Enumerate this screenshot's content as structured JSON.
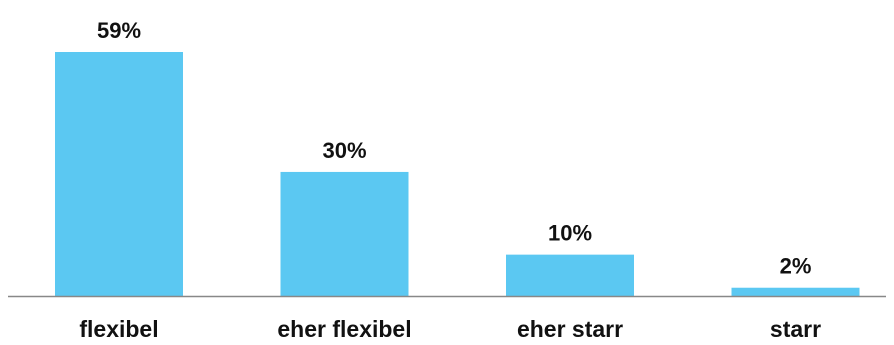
{
  "chart_data": {
    "type": "bar",
    "categories": [
      "flexibel",
      "eher flexibel",
      "eher starr",
      "starr"
    ],
    "values": [
      59,
      30,
      10,
      2
    ],
    "value_labels": [
      "59%",
      "30%",
      "10%",
      "2%"
    ],
    "title": "",
    "xlabel": "",
    "ylabel": "",
    "ylim": [
      0,
      59
    ],
    "grid": false,
    "legend": "none",
    "colors": {
      "bar": "#5bc8f2",
      "axis": "#888888",
      "text": "#111111"
    }
  }
}
